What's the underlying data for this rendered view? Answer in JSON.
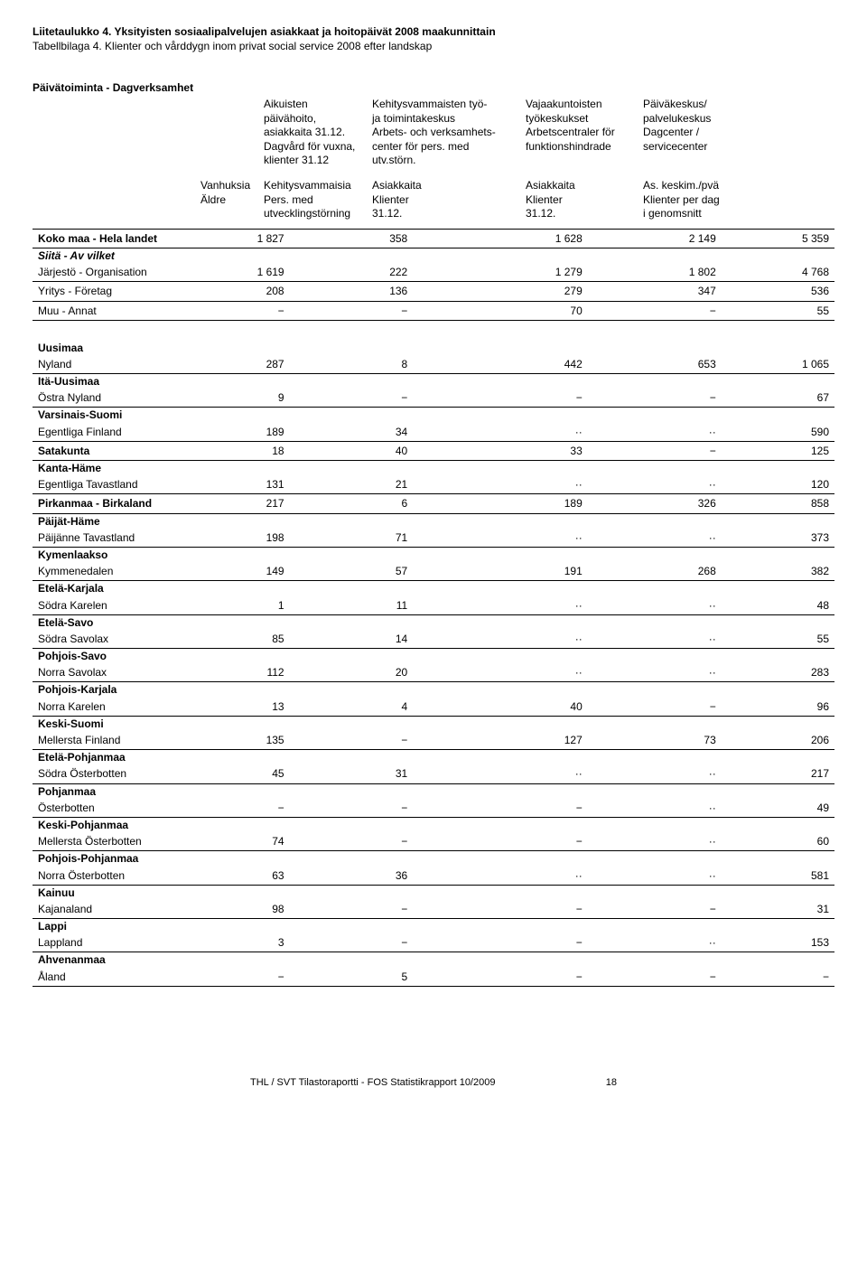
{
  "title_fi": "Liitetaulukko 4. Yksityisten sosiaalipalvelujen asiakkaat ja hoitopäivät 2008 maakunnittain",
  "title_sv": "Tabellbilaga 4. Klienter och vårddygn inom privat social service 2008 efter landskap",
  "section": "Päivätoiminta - Dagverksamhet",
  "headers": {
    "grp1": [
      "Aikuisten päivähoito,",
      "asiakkaita 31.12.",
      "Dagvård för vuxna,",
      "klienter 31.12"
    ],
    "grp3": [
      "Kehitysvammaisten työ-",
      "ja toimintakeskus",
      "Arbets- och verksamhets-",
      "center för pers. med utv.störn."
    ],
    "grp4": [
      "Vajaakuntoisten",
      "työkeskukset",
      "Arbetscentraler för",
      "funktionshindrade"
    ],
    "grp5": [
      "Päiväkeskus/",
      "palvelukeskus",
      "Dagcenter /",
      "servicecenter"
    ],
    "sub1": [
      "Vanhuksia",
      "Äldre"
    ],
    "sub2": [
      "Kehitysvammaisia",
      "Pers. med",
      "utvecklingstörning"
    ],
    "sub3": [
      "Asiakkaita",
      "Klienter",
      "31.12."
    ],
    "sub4": [
      "Asiakkaita",
      "Klienter",
      "31.12."
    ],
    "sub5": [
      "As. keskim./pvä",
      "Klienter per dag",
      "i genomsnitt"
    ]
  },
  "rows": {
    "koko": {
      "label": "Koko maa - Hela landet",
      "v": [
        "1 827",
        "358",
        "1 628",
        "2 149",
        "5 359"
      ]
    },
    "siita": {
      "label": "Siitä  - Av vilket"
    },
    "jarj": {
      "label": "Järjestö - Organisation",
      "v": [
        "1 619",
        "222",
        "1 279",
        "1 802",
        "4 768"
      ]
    },
    "yrit": {
      "label": "Yritys - Företag",
      "v": [
        "208",
        "136",
        "279",
        "347",
        "536"
      ]
    },
    "muu": {
      "label": "Muu - Annat",
      "v": [
        "−",
        "−",
        "70",
        "−",
        "55"
      ]
    }
  },
  "regions": [
    {
      "fi": "Uusimaa",
      "sv": "Nyland",
      "v": [
        "287",
        "8",
        "442",
        "653",
        "1 065"
      ]
    },
    {
      "fi": "Itä-Uusimaa",
      "sv": "Östra Nyland",
      "v": [
        "9",
        "−",
        "−",
        "−",
        "67"
      ]
    },
    {
      "fi": "Varsinais-Suomi",
      "sv": "Egentliga Finland",
      "v": [
        "189",
        "34",
        "··",
        "··",
        "590"
      ]
    },
    {
      "fi": "Satakunta",
      "sv": "",
      "v": [
        "18",
        "40",
        "33",
        "−",
        "125"
      ]
    },
    {
      "fi": "Kanta-Häme",
      "sv": "Egentliga Tavastland",
      "v": [
        "131",
        "21",
        "··",
        "··",
        "120"
      ]
    },
    {
      "fi": "Pirkanmaa - Birkaland",
      "sv": "",
      "v": [
        "217",
        "6",
        "189",
        "326",
        "858"
      ]
    },
    {
      "fi": "Päijät-Häme",
      "sv": "Päijänne Tavastland",
      "v": [
        "198",
        "71",
        "··",
        "··",
        "373"
      ]
    },
    {
      "fi": "Kymenlaakso",
      "sv": "Kymmenedalen",
      "v": [
        "149",
        "57",
        "191",
        "268",
        "382"
      ]
    },
    {
      "fi": "Etelä-Karjala",
      "sv": "Södra Karelen",
      "v": [
        "1",
        "11",
        "··",
        "··",
        "48"
      ]
    },
    {
      "fi": "Etelä-Savo",
      "sv": "Södra Savolax",
      "v": [
        "85",
        "14",
        "··",
        "··",
        "55"
      ]
    },
    {
      "fi": "Pohjois-Savo",
      "sv": "Norra Savolax",
      "v": [
        "112",
        "20",
        "··",
        "··",
        "283"
      ]
    },
    {
      "fi": "Pohjois-Karjala",
      "sv": "Norra Karelen",
      "v": [
        "13",
        "4",
        "40",
        "−",
        "96"
      ]
    },
    {
      "fi": "Keski-Suomi",
      "sv": "Mellersta Finland",
      "v": [
        "135",
        "−",
        "127",
        "73",
        "206"
      ]
    },
    {
      "fi": "Etelä-Pohjanmaa",
      "sv": "Södra Österbotten",
      "v": [
        "45",
        "31",
        "··",
        "··",
        "217"
      ]
    },
    {
      "fi": "Pohjanmaa",
      "sv": "Österbotten",
      "v": [
        "−",
        "−",
        "−",
        "··",
        "49"
      ]
    },
    {
      "fi": "Keski-Pohjanmaa",
      "sv": "Mellersta Österbotten",
      "v": [
        "74",
        "−",
        "−",
        "··",
        "60"
      ]
    },
    {
      "fi": "Pohjois-Pohjanmaa",
      "sv": "Norra Österbotten",
      "v": [
        "63",
        "36",
        "··",
        "··",
        "581"
      ]
    },
    {
      "fi": "Kainuu",
      "sv": "Kajanaland",
      "v": [
        "98",
        "−",
        "−",
        "−",
        "31"
      ]
    },
    {
      "fi": "Lappi",
      "sv": "Lappland",
      "v": [
        "3",
        "−",
        "−",
        "··",
        "153"
      ]
    },
    {
      "fi": "Ahvenanmaa",
      "sv": "Åland",
      "v": [
        "−",
        "5",
        "−",
        "−",
        "−"
      ]
    }
  ],
  "footer": {
    "text": "THL / SVT Tilastoraportti - FOS Statistikrapport 10/2009",
    "page": "18"
  }
}
